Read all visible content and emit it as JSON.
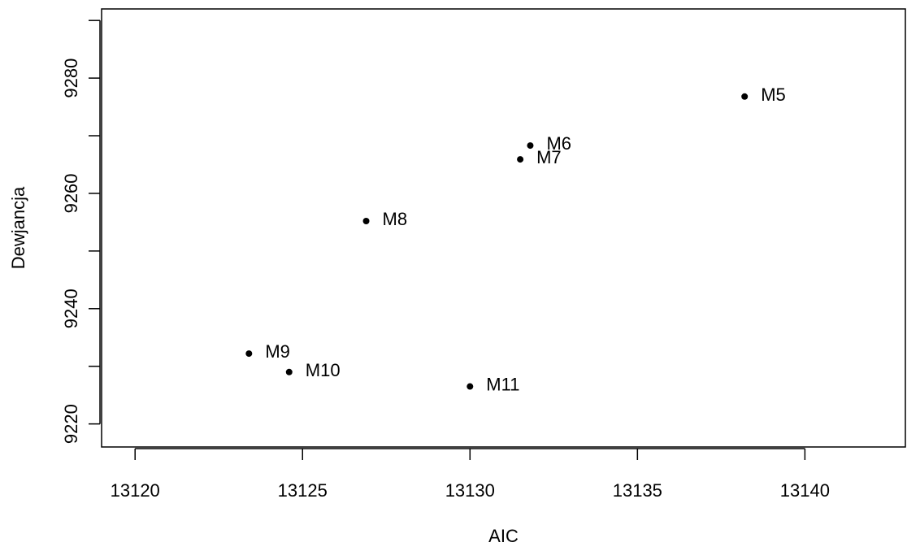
{
  "chart_data": {
    "type": "scatter",
    "title": "",
    "xlabel": "AIC",
    "ylabel": "Dewjancja",
    "xlim": [
      13119,
      13143
    ],
    "ylim": [
      9216,
      9292
    ],
    "xticks": [
      13120,
      13125,
      13130,
      13135,
      13140
    ],
    "yticks": [
      9220,
      9240,
      9260,
      9280
    ],
    "grid": false,
    "legend": "none",
    "points": [
      {
        "label": "M5",
        "x": 13138.2,
        "y": 9276.8
      },
      {
        "label": "M6",
        "x": 13131.8,
        "y": 9268.3
      },
      {
        "label": "M7",
        "x": 13131.5,
        "y": 9265.9
      },
      {
        "label": "M8",
        "x": 13126.9,
        "y": 9255.2
      },
      {
        "label": "M9",
        "x": 13123.4,
        "y": 9232.2
      },
      {
        "label": "M10",
        "x": 13124.6,
        "y": 9229.0
      },
      {
        "label": "M11",
        "x": 13130.0,
        "y": 9226.5
      }
    ]
  }
}
